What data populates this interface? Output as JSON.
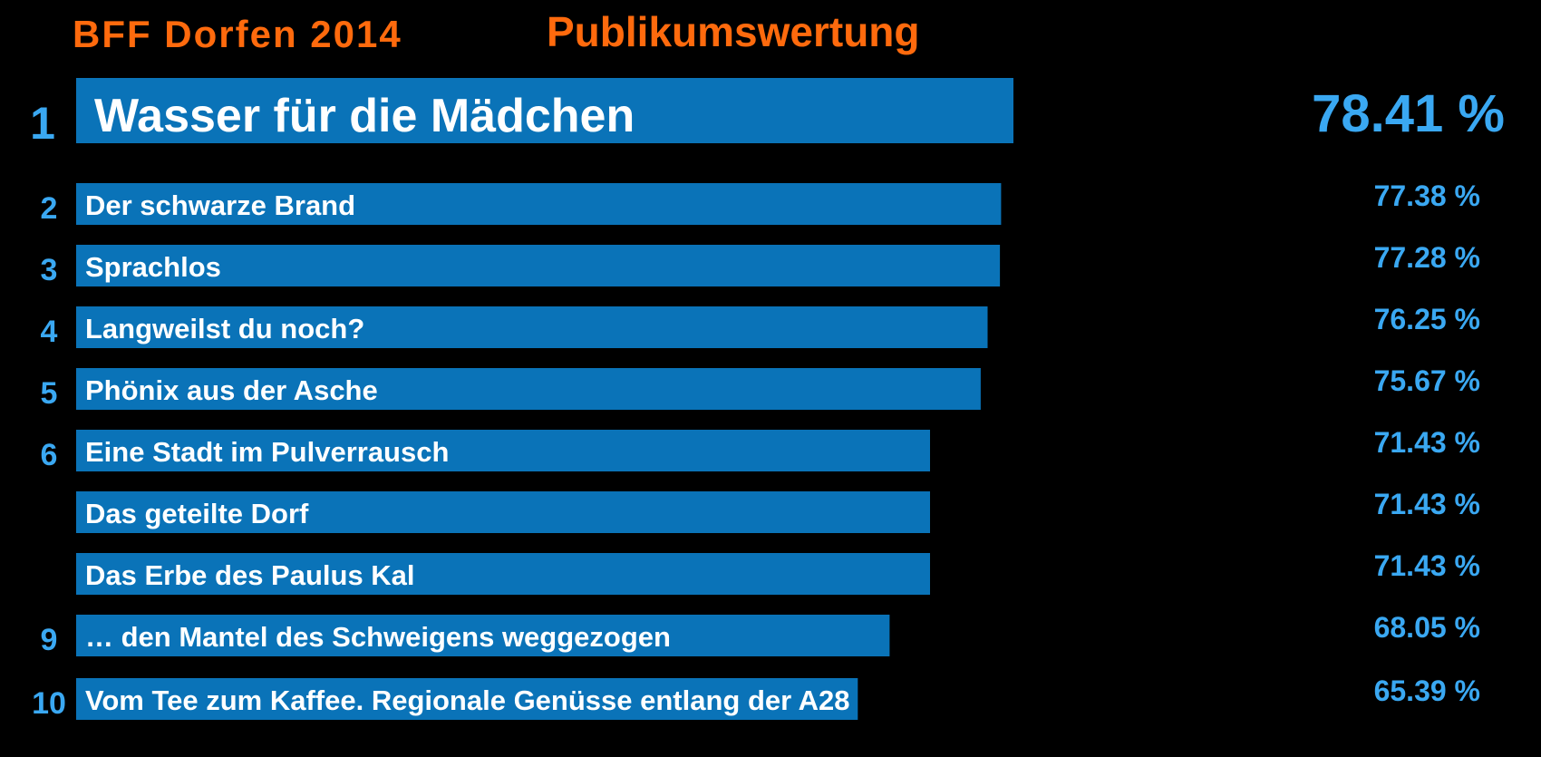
{
  "header": {
    "event": "BFF Dorfen 2014",
    "title": "Publikumswertung"
  },
  "chart_data": {
    "type": "bar",
    "orientation": "horizontal",
    "accent_color": "#0a73b8",
    "label_color": "#3aa8f2",
    "header_color": "#ff6a0d",
    "categories": [
      "Wasser für die Mädchen",
      "Der schwarze Brand",
      "Sprachlos",
      "Langweilst du noch?",
      "Phönix aus der Asche",
      "Eine Stadt im Pulverrausch",
      "Das geteilte Dorf",
      "Das Erbe des Paulus Kal",
      "… den Mantel des Schweigens weggezogen",
      "Vom Tee zum Kaffee. Regionale Genüsse entlang der A28"
    ],
    "ranks": [
      "1",
      "2",
      "3",
      "4",
      "5",
      "6",
      "",
      "",
      "9",
      "10"
    ],
    "values": [
      78.41,
      77.38,
      77.28,
      76.25,
      75.67,
      71.43,
      71.43,
      71.43,
      68.05,
      65.39
    ],
    "value_labels": [
      "78.41 %",
      "77.38 %",
      "77.28 %",
      "76.25 %",
      "75.67 %",
      "71.43 %",
      "71.43 %",
      "71.43 %",
      "68.05 %",
      "65.39 %"
    ]
  }
}
